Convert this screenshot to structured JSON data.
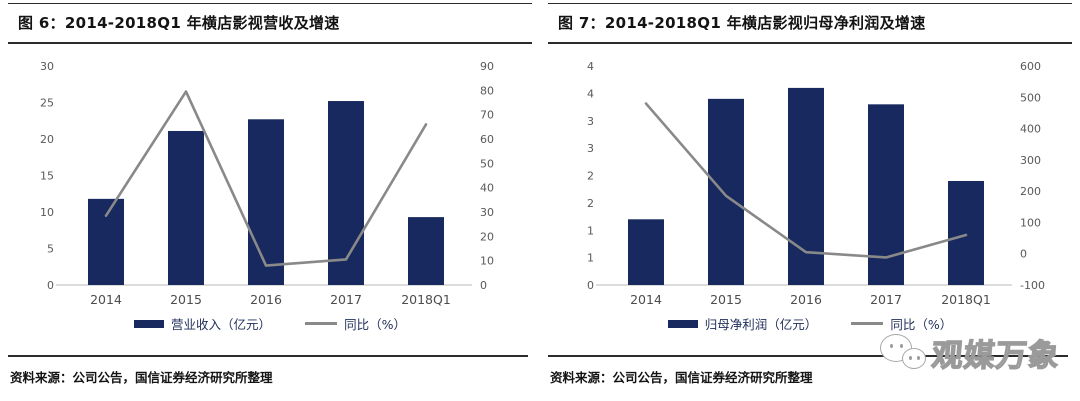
{
  "page": {
    "background": "#ffffff"
  },
  "watermark": {
    "text": "观媒万象"
  },
  "figures": [
    {
      "title": "图 6：2014-2018Q1 年横店影视营收及增速",
      "source": "资料来源：公司公告，国信证券经济研究所整理",
      "legend": [
        {
          "label": "营业收入（亿元）",
          "type": "bar"
        },
        {
          "label": "同比（%）",
          "type": "line"
        }
      ],
      "chart_data": {
        "type": "bar",
        "categories": [
          "2014",
          "2015",
          "2016",
          "2017",
          "2018Q1"
        ],
        "series": [
          {
            "name": "营业收入（亿元）",
            "type": "bar",
            "axis": "left",
            "values": [
              11.8,
              21.1,
              22.7,
              25.2,
              9.3
            ]
          },
          {
            "name": "同比（%）",
            "type": "line",
            "axis": "right",
            "values": [
              28.5,
              79.5,
              8,
              10.5,
              66
            ]
          }
        ],
        "left_axis": {
          "min": 0,
          "max": 30,
          "tick_labels": [
            "0",
            "5",
            "10",
            "15",
            "20",
            "25",
            "30"
          ]
        },
        "right_axis": {
          "min": 0,
          "max": 90,
          "tick_labels": [
            "0",
            "10",
            "20",
            "30",
            "40",
            "50",
            "60",
            "70",
            "80",
            "90"
          ]
        },
        "grid": "off",
        "legend_position": "bottom",
        "colors": {
          "bar": "#17295e",
          "line": "#898989",
          "tick_text": "#595959",
          "x_text": "#4d4d4d",
          "axis_line": "#c6c6c6"
        }
      }
    },
    {
      "title": "图 7：2014-2018Q1 年横店影视归母净利润及增速",
      "source": "资料来源：公司公告，国信证券经济研究所整理",
      "legend": [
        {
          "label": "归母净利润（亿元）",
          "type": "bar"
        },
        {
          "label": "同比（%）",
          "type": "line"
        }
      ],
      "chart_data": {
        "type": "bar",
        "categories": [
          "2014",
          "2015",
          "2016",
          "2017",
          "2018Q1"
        ],
        "series": [
          {
            "name": "归母净利润（亿元）",
            "type": "bar",
            "axis": "left",
            "values": [
              1.2,
              3.4,
              3.6,
              3.3,
              1.9
            ]
          },
          {
            "name": "同比（%）",
            "type": "line",
            "axis": "right",
            "values": [
              480,
              185,
              5,
              -12,
              60
            ]
          }
        ],
        "left_axis": {
          "min": 0,
          "max": 4,
          "tick_labels": [
            "0",
            "1",
            "1",
            "2",
            "2",
            "3",
            "3",
            "4",
            "4"
          ]
        },
        "right_axis": {
          "min": -100,
          "max": 600,
          "tick_labels": [
            "-100",
            "0",
            "100",
            "200",
            "300",
            "400",
            "500",
            "600"
          ]
        },
        "grid": "off",
        "legend_position": "bottom",
        "colors": {
          "bar": "#17295e",
          "line": "#898989",
          "tick_text": "#595959",
          "x_text": "#4d4d4d",
          "axis_line": "#c6c6c6"
        }
      }
    }
  ]
}
